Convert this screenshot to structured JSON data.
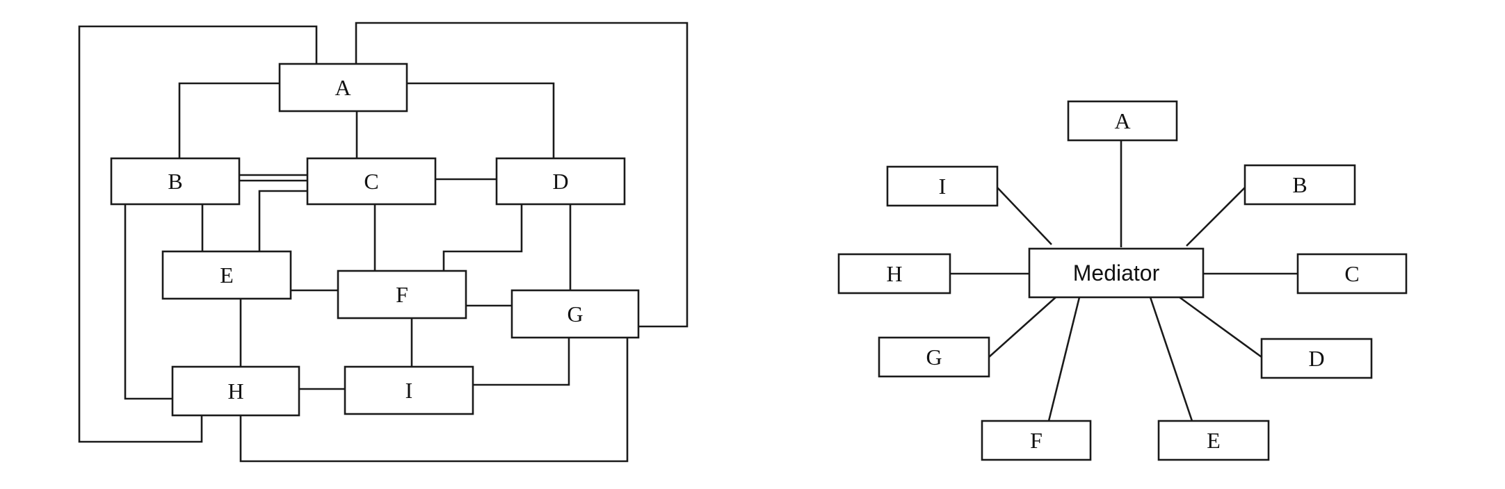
{
  "left_diagram": {
    "nodes": {
      "A": "A",
      "B": "B",
      "C": "C",
      "D": "D",
      "E": "E",
      "F": "F",
      "G": "G",
      "H": "H",
      "I": "I"
    }
  },
  "right_diagram": {
    "hub": "Mediator",
    "nodes": {
      "A": "A",
      "B": "B",
      "C": "C",
      "D": "D",
      "E": "E",
      "F": "F",
      "G": "G",
      "H": "H",
      "I": "I"
    }
  }
}
